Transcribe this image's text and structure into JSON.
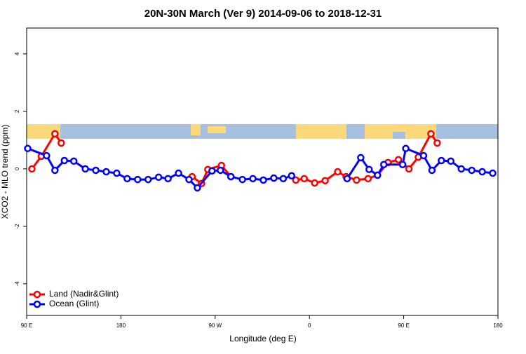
{
  "chart_data": {
    "type": "line",
    "title": "20N-30N March (Ver 9)   2014-09-06 to 2018-12-31",
    "x_label": "Longitude (deg E)",
    "y_label": "XCO2 - MLO trend (ppm)",
    "xlim": [
      90,
      540
    ],
    "ylim": [
      -5.1,
      4.9
    ],
    "xticks": [
      {
        "value": 90,
        "label": "90 E"
      },
      180,
      {
        "value": 270,
        "label": "90 W"
      },
      {
        "value": 360,
        "label": "0"
      },
      {
        "value": 450,
        "label": "90 E"
      },
      {
        "value": 540,
        "label": "180"
      }
    ],
    "yticks": [
      -4,
      -2,
      0,
      2,
      4
    ],
    "legend": "bottom-left",
    "series": [
      {
        "name": "Land (Nadir&Glint)",
        "color": "#ff0000",
        "x": [
          95,
          104,
          117,
          123,
          185,
          248,
          257,
          263,
          276,
          285,
          316,
          347,
          355,
          365,
          375,
          387,
          395,
          405,
          416,
          425,
          435,
          445,
          455,
          464,
          476,
          482
        ],
        "values": [
          0.0,
          0.44,
          1.22,
          0.9,
          null,
          -0.27,
          -0.51,
          -0.02,
          0.12,
          -0.27,
          null,
          -0.39,
          -0.34,
          -0.49,
          -0.41,
          -0.1,
          -0.27,
          -0.39,
          -0.34,
          -0.22,
          0.22,
          0.32,
          0.0,
          0.41,
          1.22,
          0.9
        ]
      },
      {
        "name": "Ocean (Glint)",
        "color": "#0000ff",
        "x": [
          91,
          109,
          117,
          126,
          135,
          146,
          156,
          166,
          176,
          186,
          196,
          206,
          216,
          225,
          235,
          245,
          253,
          267,
          275,
          285,
          296,
          306,
          316,
          326,
          335,
          343,
          370,
          396,
          409,
          417,
          425,
          431,
          449,
          452,
          469,
          477,
          486,
          495,
          505,
          515,
          525,
          535
        ],
        "values": [
          0.71,
          0.46,
          -0.05,
          0.29,
          0.27,
          0.0,
          -0.05,
          -0.1,
          -0.15,
          -0.34,
          -0.37,
          -0.37,
          -0.29,
          -0.34,
          -0.15,
          -0.37,
          -0.66,
          -0.07,
          -0.05,
          -0.27,
          -0.37,
          -0.34,
          -0.39,
          -0.32,
          -0.34,
          -0.24,
          null,
          -0.34,
          0.39,
          -0.02,
          -0.22,
          0.15,
          0.15,
          0.71,
          0.46,
          -0.05,
          0.29,
          0.27,
          0.0,
          -0.05,
          -0.1,
          -0.15
        ]
      }
    ]
  }
}
